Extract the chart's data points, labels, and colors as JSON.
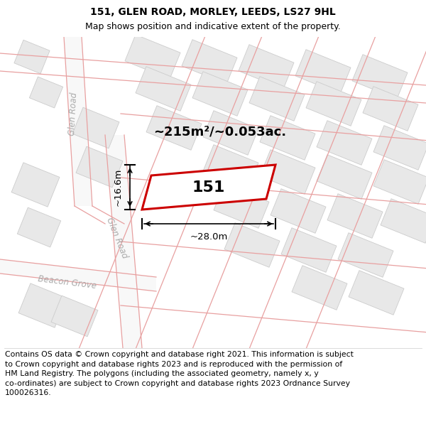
{
  "title": "151, GLEN ROAD, MORLEY, LEEDS, LS27 9HL",
  "subtitle": "Map shows position and indicative extent of the property.",
  "footer": "Contains OS data © Crown copyright and database right 2021. This information is subject\nto Crown copyright and database rights 2023 and is reproduced with the permission of\nHM Land Registry. The polygons (including the associated geometry, namely x, y\nco-ordinates) are subject to Crown copyright and database rights 2023 Ordnance Survey\n100026316.",
  "area_label": "~215m²/~0.053ac.",
  "width_label": "~28.0m",
  "height_label": "~16.6m",
  "plot_number": "151",
  "road1_label": "Glen Road",
  "road2_label": "Glen Road",
  "road3_label": "Beacon Grove",
  "background_color": "#ffffff",
  "building_fill": "#e8e8e8",
  "building_edge": "#cccccc",
  "road_line_color": "#e8a0a0",
  "highlight_fill": "#ffffff",
  "highlight_edge": "#cc0000",
  "dim_color": "#000000",
  "road_label_color": "#aaaaaa",
  "figsize": [
    6.0,
    6.25
  ],
  "dpi": 100,
  "title_fontsize": 10,
  "subtitle_fontsize": 9,
  "footer_fontsize": 7.8
}
